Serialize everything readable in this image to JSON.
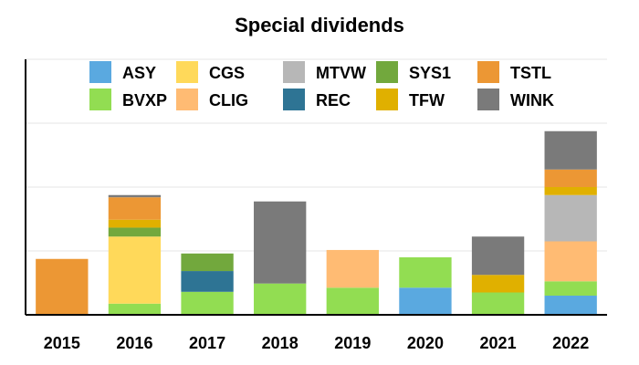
{
  "chart_data": {
    "type": "bar",
    "stacked": true,
    "title": "Special dividends",
    "xlabel": "",
    "ylabel": "",
    "ylim": [
      0,
      8
    ],
    "y_tick_labels_shown": false,
    "grid": "horizontal",
    "legend_position": "top",
    "categories": [
      "2015",
      "2016",
      "2017",
      "2018",
      "2019",
      "2020",
      "2021",
      "2022"
    ],
    "series": [
      {
        "name": "ASY",
        "color": "#5AA9E0",
        "values": [
          0,
          0,
          0,
          0,
          0,
          0.85,
          0,
          0.6
        ]
      },
      {
        "name": "BVXP",
        "color": "#92DD52",
        "values": [
          0,
          0.35,
          0.72,
          0.98,
          0.85,
          0.95,
          0.7,
          0.45
        ]
      },
      {
        "name": "CGS",
        "color": "#FFD95A",
        "values": [
          0,
          2.1,
          0,
          0,
          0,
          0,
          0,
          0
        ]
      },
      {
        "name": "CLIG",
        "color": "#FFBB73",
        "values": [
          0,
          0,
          0,
          0,
          1.18,
          0,
          0,
          1.25
        ]
      },
      {
        "name": "MTVW",
        "color": "#B7B7B7",
        "values": [
          0,
          0,
          0,
          0,
          0,
          0,
          0,
          1.45
        ]
      },
      {
        "name": "REC",
        "color": "#2E7494",
        "values": [
          0,
          0,
          0.65,
          0,
          0,
          0,
          0,
          0
        ]
      },
      {
        "name": "SYS1",
        "color": "#72A83D",
        "values": [
          0,
          0.28,
          0.55,
          0,
          0,
          0,
          0,
          0
        ]
      },
      {
        "name": "TFW",
        "color": "#E0B000",
        "values": [
          0,
          0.25,
          0,
          0,
          0,
          0,
          0.55,
          0.25
        ]
      },
      {
        "name": "TSTL",
        "color": "#EC9734",
        "values": [
          1.75,
          0.7,
          0,
          0,
          0,
          0,
          0,
          0.55
        ]
      },
      {
        "name": "WINK",
        "color": "#7A7A7A",
        "values": [
          0,
          0.07,
          0,
          2.57,
          0,
          0,
          1.2,
          1.2
        ]
      }
    ]
  }
}
